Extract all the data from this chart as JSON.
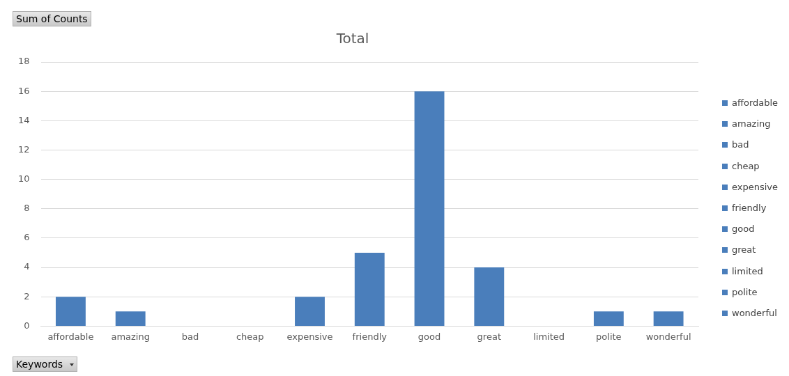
{
  "chart_data": {
    "type": "bar",
    "title": "Total",
    "categories": [
      "affordable",
      "amazing",
      "bad",
      "cheap",
      "expensive",
      "friendly",
      "good",
      "great",
      "limited",
      "polite",
      "wonderful"
    ],
    "series": [
      {
        "color": "#4a7ebb",
        "values": [
          2,
          1,
          0,
          0,
          2,
          5,
          16,
          4,
          0,
          1,
          1
        ]
      }
    ],
    "ylim": [
      0,
      18
    ],
    "yticks": [
      0,
      2,
      4,
      6,
      8,
      10,
      12,
      14,
      16,
      18
    ],
    "grid": "y",
    "annotations": [
      "Sum of Counts",
      "Keywords"
    ]
  }
}
